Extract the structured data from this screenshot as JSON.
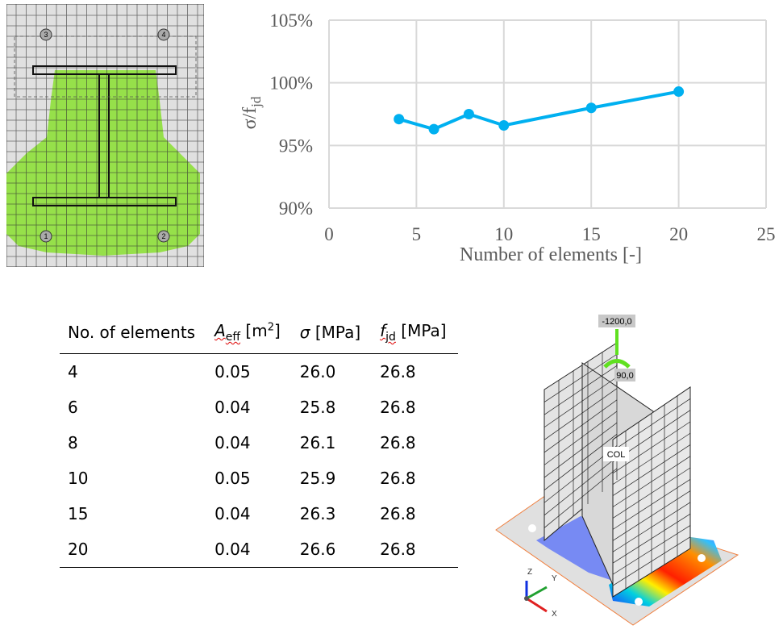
{
  "mesh_figure": {
    "support_labels": [
      "1",
      "2",
      "3",
      "4"
    ],
    "colors": {
      "compression_zone": "#8ee03a",
      "mesh": "#333333",
      "background": "#e0e0e0"
    }
  },
  "chart_data": {
    "type": "line",
    "title": "",
    "xlabel": "Number of elements [-]",
    "ylabel": "σ/f_jd",
    "ylabel_main": "σ/f",
    "ylabel_sub": "jd",
    "x": [
      4,
      6,
      8,
      10,
      15,
      20
    ],
    "series": [
      {
        "values": [
          97.1,
          96.3,
          97.5,
          96.6,
          98.0,
          99.3
        ],
        "color": "#00b0f0"
      }
    ],
    "xlim": [
      0,
      25
    ],
    "ylim": [
      90,
      105
    ],
    "xticks": [
      "0",
      "5",
      "10",
      "15",
      "20",
      "25"
    ],
    "yticks": [
      "90%",
      "95%",
      "100%",
      "105%"
    ],
    "grid": true,
    "marker": "circle"
  },
  "table": {
    "headers": {
      "col1": "No. of elements",
      "col2_main": "A",
      "col2_sub": "eff",
      "col2_unit": " [m",
      "col2_sup": "2",
      "col2_end": "]",
      "col3_main": "σ",
      "col3_unit": " [MPa]",
      "col4_main": "f",
      "col4_sub": "jd",
      "col4_unit": " [MPa]"
    },
    "rows": [
      [
        "4",
        "0.05",
        "26.0",
        "26.8"
      ],
      [
        "6",
        "0.04",
        "25.8",
        "26.8"
      ],
      [
        "8",
        "0.04",
        "26.1",
        "26.8"
      ],
      [
        "10",
        "0.05",
        "25.9",
        "26.8"
      ],
      [
        "15",
        "0.04",
        "26.3",
        "26.8"
      ],
      [
        "20",
        "0.04",
        "26.6",
        "26.8"
      ]
    ]
  },
  "fem_view": {
    "force_label": "-1200,0",
    "moment_label": "90,0",
    "member_label": "COL",
    "axes": [
      "Z",
      "Y",
      "X"
    ]
  }
}
